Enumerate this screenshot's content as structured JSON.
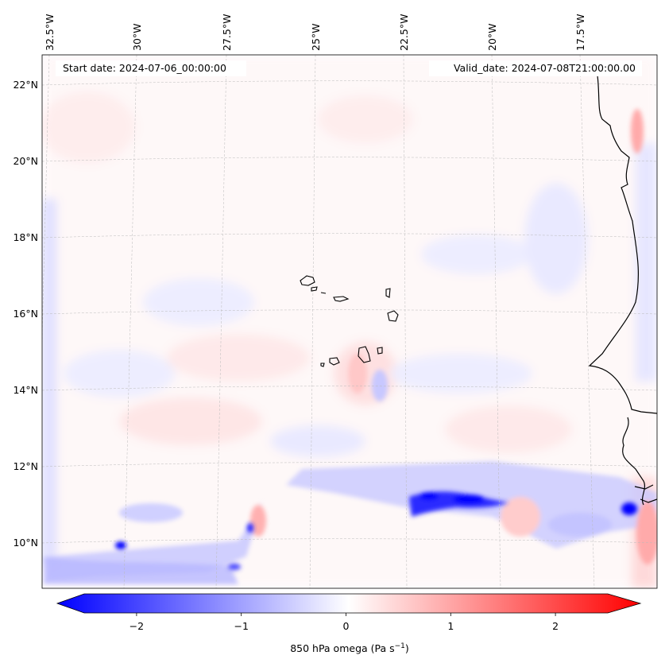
{
  "header": {
    "start_date": "Start date: 2024-07-06_00:00:00",
    "valid_date": "Valid_date: 2024-07-08T21:00:00.00"
  },
  "lon_labels": [
    "32.5°W",
    "30°W",
    "27.5°W",
    "25°W",
    "22.5°W",
    "20°W",
    "17.5°W"
  ],
  "lat_labels": [
    "22°N",
    "20°N",
    "18°N",
    "16°N",
    "14°N",
    "12°N",
    "10°N"
  ],
  "colorbar": {
    "ticks": [
      "−2",
      "−1",
      "0",
      "1",
      "2"
    ],
    "tick_values": [
      -2,
      -1,
      0,
      1,
      2
    ],
    "min": -2.6,
    "max": 2.6,
    "label_text": "850 hPa omega (Pa s",
    "label_exp": "−1",
    "label_close": ")",
    "colors": {
      "low": "#0000ff",
      "mid": "#ffffff",
      "high": "#ff0000"
    }
  },
  "map": {
    "region": "Cape Verde / West Africa, North Atlantic",
    "islands": "Cape Verde archipelago",
    "coastline": "West African coast"
  }
}
